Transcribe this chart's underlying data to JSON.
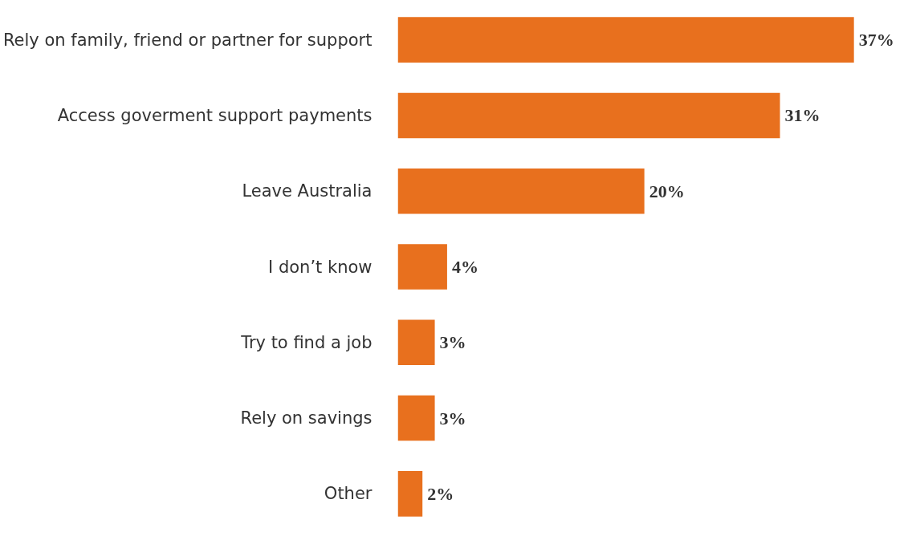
{
  "chart_data": {
    "type": "bar",
    "orientation": "horizontal",
    "categories": [
      "Rely on family, friend or partner for support",
      "Access goverment support payments",
      "Leave Australia",
      "I don’t know",
      "Try to find a job",
      "Rely on savings",
      "Other"
    ],
    "values": [
      37,
      31,
      20,
      4,
      3,
      3,
      2
    ],
    "value_labels": [
      "37%",
      "31%",
      "20%",
      "4%",
      "3%",
      "3%",
      "2%"
    ],
    "color": "#e8701e"
  }
}
